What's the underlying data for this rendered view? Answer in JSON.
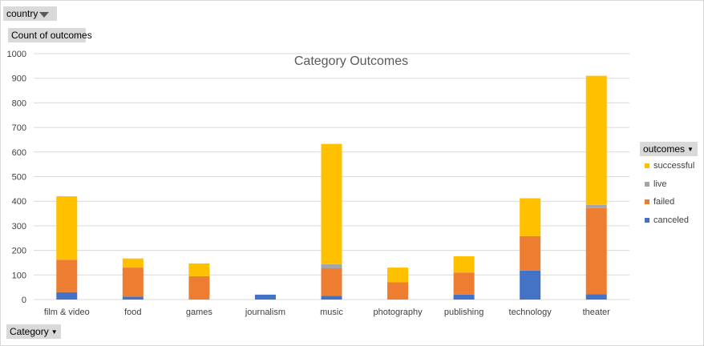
{
  "filter": {
    "label": "country"
  },
  "y_field": {
    "label": "Count of outcomes"
  },
  "x_field": {
    "label": "Category"
  },
  "legend": {
    "title": "outcomes"
  },
  "colors": {
    "successful": "#ffc000",
    "live": "#a5a5a5",
    "failed": "#ed7d31",
    "canceled": "#4472c4",
    "grid": "#d9d9d9"
  },
  "chart_data": {
    "type": "bar",
    "stacked": true,
    "title": "Category Outcomes",
    "xlabel": "Category",
    "ylabel": "Count of outcomes",
    "ylim": [
      0,
      1000
    ],
    "yticks": [
      0,
      100,
      200,
      300,
      400,
      500,
      600,
      700,
      800,
      900,
      1000
    ],
    "grid": true,
    "legend_position": "right",
    "categories": [
      "film & video",
      "food",
      "games",
      "journalism",
      "music",
      "photography",
      "publishing",
      "technology",
      "theater"
    ],
    "series": [
      {
        "name": "canceled",
        "values": [
          30,
          12,
          0,
          20,
          15,
          0,
          20,
          118,
          22
        ]
      },
      {
        "name": "failed",
        "values": [
          132,
          118,
          95,
          0,
          112,
          70,
          90,
          140,
          350
        ]
      },
      {
        "name": "live",
        "values": [
          0,
          0,
          0,
          0,
          17,
          0,
          0,
          0,
          13
        ]
      },
      {
        "name": "successful",
        "values": [
          258,
          37,
          52,
          0,
          489,
          60,
          66,
          154,
          525
        ]
      }
    ]
  }
}
